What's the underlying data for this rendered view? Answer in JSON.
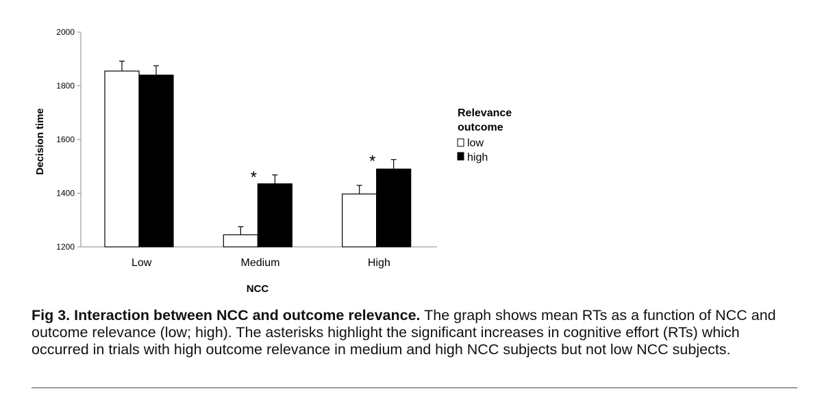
{
  "chart_data": {
    "type": "bar",
    "categories": [
      "Low",
      "Medium",
      "High"
    ],
    "series": [
      {
        "name": "low",
        "values": [
          1855,
          1245,
          1397
        ],
        "errors": [
          37,
          30,
          32
        ],
        "color": "#ffffff"
      },
      {
        "name": "high",
        "values": [
          1840,
          1435,
          1490
        ],
        "errors": [
          35,
          33,
          35
        ],
        "color": "#000000"
      }
    ],
    "xlabel": "NCC",
    "ylabel": "Decision time",
    "ylim": [
      1200,
      2000
    ],
    "yticks": [
      1200,
      1400,
      1600,
      1800,
      2000
    ],
    "grid": false,
    "legend": {
      "title_line1": "Relevance",
      "title_line2": "outcome",
      "placement": "right"
    },
    "annotations": [
      {
        "text": "*",
        "category": "Medium",
        "y": 1470
      },
      {
        "text": "*",
        "category": "High",
        "y": 1530
      }
    ]
  },
  "caption": {
    "label": "Fig 3.",
    "title": "Interaction between NCC and outcome relevance.",
    "body": "The graph shows mean RTs as a function of NCC and outcome relevance (low; high). The asterisks highlight the significant increases in cognitive effort (RTs) which occurred in trials with high outcome relevance in medium and high NCC subjects but not low NCC subjects."
  }
}
